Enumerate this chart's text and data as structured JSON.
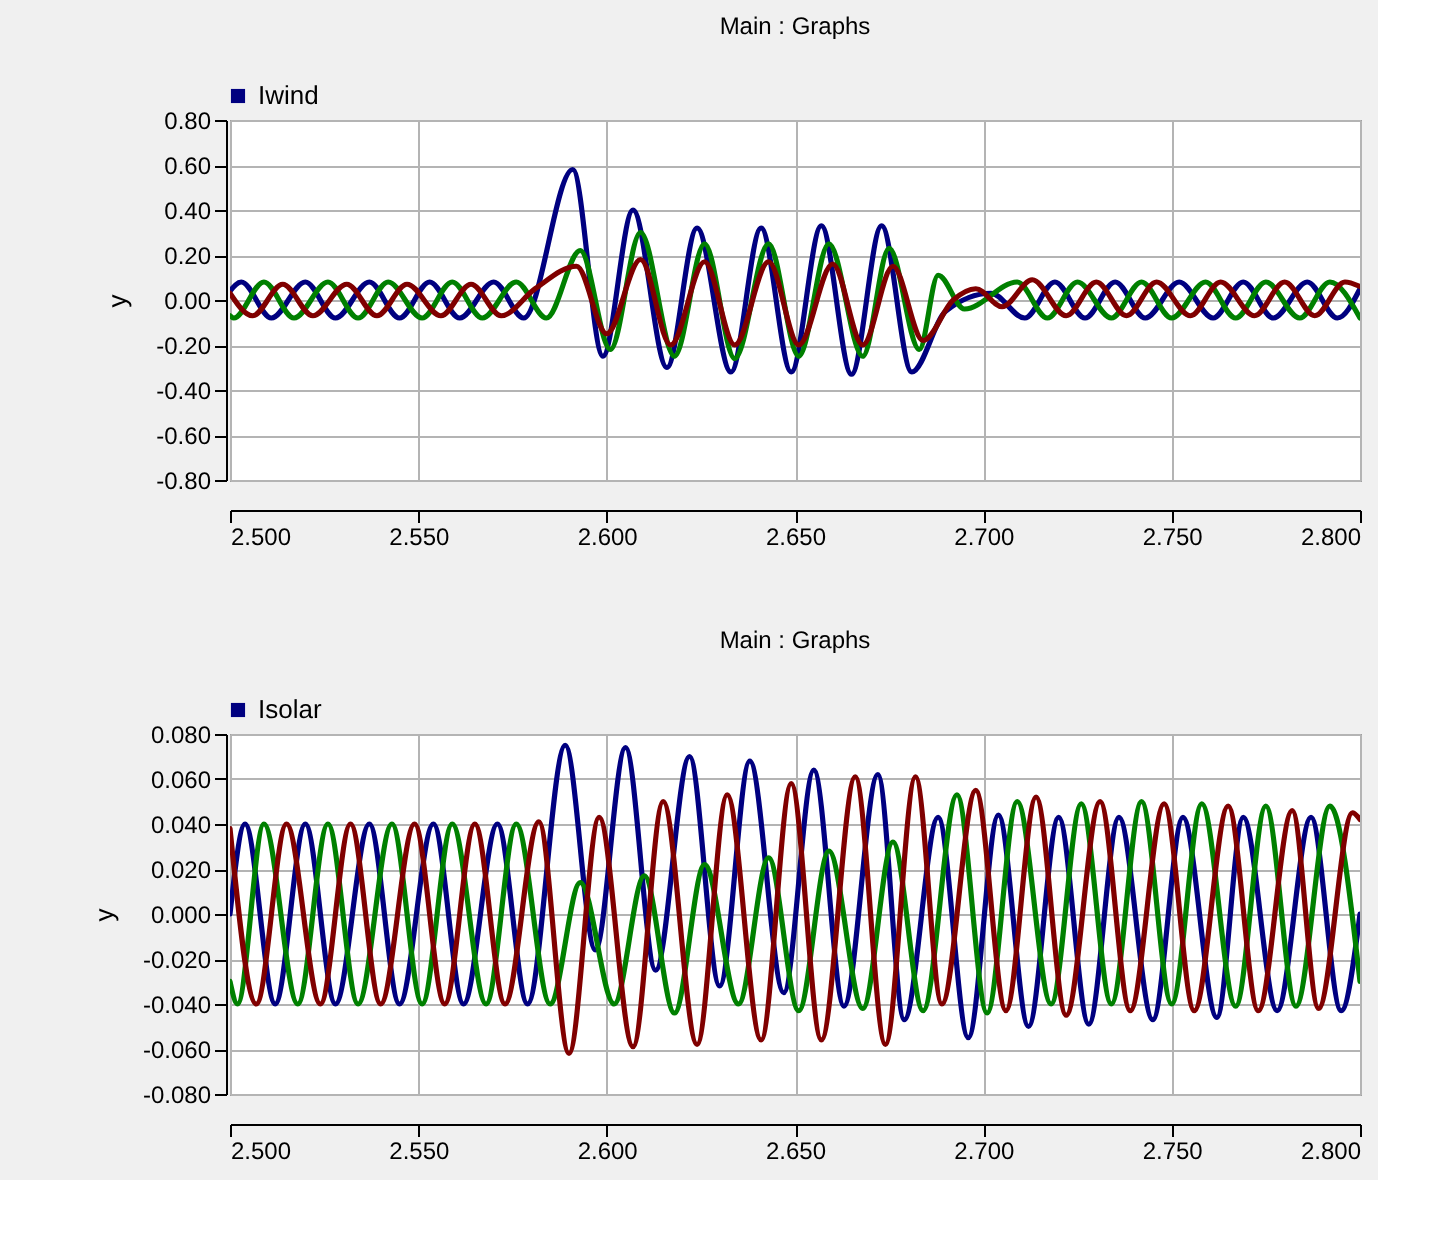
{
  "chart_data": [
    {
      "type": "line",
      "title": "Main : Graphs",
      "ylabel": "y",
      "legend": "top left",
      "grid": true,
      "xlim": [
        2.5,
        2.8
      ],
      "xticks": [
        {
          "value": 2.5,
          "label": "2.500"
        },
        {
          "value": 2.55,
          "label": "2.550"
        },
        {
          "value": 2.6,
          "label": "2.600"
        },
        {
          "value": 2.65,
          "label": "2.650"
        },
        {
          "value": 2.7,
          "label": "2.700"
        },
        {
          "value": 2.75,
          "label": "2.750"
        },
        {
          "value": 2.8,
          "label": "2.800"
        }
      ],
      "ylim": [
        -0.8,
        0.8
      ],
      "yticks": [
        {
          "value": -0.8,
          "label": "-0.80"
        },
        {
          "value": -0.6,
          "label": "-0.60"
        },
        {
          "value": -0.4,
          "label": "-0.40"
        },
        {
          "value": -0.2,
          "label": "-0.20"
        },
        {
          "value": 0,
          "label": "0.00"
        },
        {
          "value": 0.2,
          "label": "0.20"
        },
        {
          "value": 0.4,
          "label": "0.40"
        },
        {
          "value": 0.6,
          "label": "0.60"
        },
        {
          "value": 0.8,
          "label": "0.80"
        }
      ],
      "series": [
        {
          "name": "Iwind",
          "color": "#000080",
          "x": [
            2.5,
            2.503,
            2.511,
            2.52,
            2.528,
            2.537,
            2.545,
            2.553,
            2.561,
            2.57,
            2.578,
            2.591,
            2.599,
            2.607,
            2.616,
            2.624,
            2.633,
            2.641,
            2.649,
            2.657,
            2.665,
            2.673,
            2.681,
            2.69,
            2.702,
            2.711,
            2.719,
            2.727,
            2.735,
            2.743,
            2.752,
            2.761,
            2.769,
            2.777,
            2.786,
            2.794,
            2.8
          ],
          "values": [
            0.04,
            0.08,
            -0.08,
            0.08,
            -0.08,
            0.08,
            -0.08,
            0.08,
            -0.08,
            0.08,
            -0.08,
            0.58,
            -0.25,
            0.4,
            -0.3,
            0.32,
            -0.32,
            0.32,
            -0.32,
            0.33,
            -0.33,
            0.33,
            -0.32,
            -0.05,
            0.03,
            -0.08,
            0.08,
            -0.08,
            0.08,
            -0.08,
            0.08,
            -0.08,
            0.08,
            -0.08,
            0.08,
            -0.08,
            0.05
          ]
        },
        {
          "color": "#008000",
          "x": [
            2.5,
            2.501,
            2.509,
            2.517,
            2.526,
            2.534,
            2.542,
            2.551,
            2.559,
            2.567,
            2.576,
            2.584,
            2.593,
            2.601,
            2.609,
            2.618,
            2.626,
            2.634,
            2.643,
            2.651,
            2.659,
            2.668,
            2.675,
            2.683,
            2.688,
            2.695,
            2.709,
            2.717,
            2.725,
            2.734,
            2.742,
            2.75,
            2.759,
            2.767,
            2.775,
            2.784,
            2.792,
            2.8
          ],
          "values": [
            -0.07,
            -0.08,
            0.08,
            -0.08,
            0.08,
            -0.08,
            0.08,
            -0.08,
            0.08,
            -0.08,
            0.08,
            -0.08,
            0.22,
            -0.22,
            0.3,
            -0.25,
            0.25,
            -0.26,
            0.25,
            -0.25,
            0.25,
            -0.25,
            0.23,
            -0.22,
            0.11,
            -0.04,
            0.08,
            -0.08,
            0.08,
            -0.08,
            0.08,
            -0.08,
            0.08,
            -0.08,
            0.08,
            -0.08,
            0.08,
            -0.08
          ]
        },
        {
          "color": "#800000",
          "x": [
            2.5,
            2.506,
            2.514,
            2.522,
            2.531,
            2.539,
            2.547,
            2.556,
            2.564,
            2.572,
            2.581,
            2.592,
            2.6,
            2.609,
            2.617,
            2.626,
            2.634,
            2.643,
            2.651,
            2.66,
            2.668,
            2.676,
            2.684,
            2.692,
            2.698,
            2.705,
            2.713,
            2.722,
            2.73,
            2.738,
            2.746,
            2.755,
            2.763,
            2.772,
            2.78,
            2.788,
            2.796,
            2.8
          ],
          "values": [
            0.03,
            -0.07,
            0.07,
            -0.07,
            0.07,
            -0.07,
            0.07,
            -0.07,
            0.07,
            -0.07,
            0.05,
            0.15,
            -0.15,
            0.18,
            -0.2,
            0.17,
            -0.2,
            0.17,
            -0.2,
            0.16,
            -0.2,
            0.15,
            -0.18,
            0.0,
            0.05,
            -0.03,
            0.09,
            -0.07,
            0.08,
            -0.07,
            0.08,
            -0.07,
            0.08,
            -0.07,
            0.08,
            -0.07,
            0.08,
            0.06
          ]
        }
      ]
    },
    {
      "type": "line",
      "title": "Main : Graphs",
      "ylabel": "y",
      "legend": "top left",
      "grid": true,
      "xlim": [
        2.5,
        2.8
      ],
      "xticks": [
        {
          "value": 2.5,
          "label": "2.500"
        },
        {
          "value": 2.55,
          "label": "2.550"
        },
        {
          "value": 2.6,
          "label": "2.600"
        },
        {
          "value": 2.65,
          "label": "2.650"
        },
        {
          "value": 2.7,
          "label": "2.700"
        },
        {
          "value": 2.75,
          "label": "2.750"
        },
        {
          "value": 2.8,
          "label": "2.800"
        }
      ],
      "ylim": [
        -0.08,
        0.08
      ],
      "yticks": [
        {
          "value": -0.08,
          "label": "-0.080"
        },
        {
          "value": -0.06,
          "label": "-0.060"
        },
        {
          "value": -0.04,
          "label": "-0.040"
        },
        {
          "value": -0.02,
          "label": "-0.020"
        },
        {
          "value": 0,
          "label": "0.000"
        },
        {
          "value": 0.02,
          "label": "0.020"
        },
        {
          "value": 0.04,
          "label": "0.040"
        },
        {
          "value": 0.06,
          "label": "0.060"
        },
        {
          "value": 0.08,
          "label": "0.080"
        }
      ],
      "series": [
        {
          "name": "Isolar",
          "color": "#000080",
          "x": [
            2.5,
            2.504,
            2.512,
            2.52,
            2.528,
            2.537,
            2.545,
            2.554,
            2.562,
            2.571,
            2.579,
            2.589,
            2.597,
            2.605,
            2.613,
            2.622,
            2.63,
            2.638,
            2.647,
            2.655,
            2.663,
            2.672,
            2.679,
            2.688,
            2.696,
            2.704,
            2.712,
            2.72,
            2.728,
            2.736,
            2.745,
            2.753,
            2.762,
            2.769,
            2.778,
            2.787,
            2.795,
            2.8
          ],
          "values": [
            0.0,
            0.04,
            -0.04,
            0.04,
            -0.04,
            0.04,
            -0.04,
            0.04,
            -0.04,
            0.04,
            -0.04,
            0.075,
            -0.016,
            0.074,
            -0.025,
            0.07,
            -0.032,
            0.068,
            -0.035,
            0.064,
            -0.041,
            0.062,
            -0.047,
            0.043,
            -0.055,
            0.044,
            -0.05,
            0.043,
            -0.049,
            0.043,
            -0.047,
            0.043,
            -0.046,
            0.043,
            -0.043,
            0.043,
            -0.043,
            0.0
          ]
        },
        {
          "color": "#008000",
          "x": [
            2.5,
            2.502,
            2.509,
            2.518,
            2.526,
            2.534,
            2.543,
            2.551,
            2.559,
            2.568,
            2.576,
            2.585,
            2.593,
            2.602,
            2.61,
            2.618,
            2.626,
            2.635,
            2.643,
            2.651,
            2.659,
            2.668,
            2.676,
            2.684,
            2.693,
            2.701,
            2.709,
            2.718,
            2.726,
            2.734,
            2.742,
            2.75,
            2.758,
            2.767,
            2.775,
            2.783,
            2.792,
            2.8
          ],
          "values": [
            -0.03,
            -0.04,
            0.04,
            -0.04,
            0.04,
            -0.04,
            0.04,
            -0.04,
            0.04,
            -0.04,
            0.04,
            -0.04,
            0.014,
            -0.04,
            0.017,
            -0.044,
            0.022,
            -0.04,
            0.025,
            -0.043,
            0.028,
            -0.042,
            0.032,
            -0.043,
            0.053,
            -0.044,
            0.05,
            -0.04,
            0.049,
            -0.04,
            0.05,
            -0.04,
            0.049,
            -0.041,
            0.048,
            -0.041,
            0.048,
            -0.03
          ]
        },
        {
          "color": "#800000",
          "x": [
            2.5,
            2.507,
            2.515,
            2.524,
            2.532,
            2.54,
            2.549,
            2.557,
            2.565,
            2.573,
            2.582,
            2.59,
            2.598,
            2.607,
            2.615,
            2.624,
            2.632,
            2.641,
            2.649,
            2.657,
            2.666,
            2.674,
            2.682,
            2.689,
            2.698,
            2.706,
            2.714,
            2.722,
            2.731,
            2.739,
            2.748,
            2.756,
            2.765,
            2.773,
            2.782,
            2.789,
            2.798,
            2.8
          ],
          "values": [
            0.038,
            -0.04,
            0.04,
            -0.04,
            0.04,
            -0.04,
            0.04,
            -0.04,
            0.04,
            -0.04,
            0.041,
            -0.062,
            0.043,
            -0.059,
            0.05,
            -0.058,
            0.053,
            -0.056,
            0.058,
            -0.056,
            0.061,
            -0.058,
            0.061,
            -0.04,
            0.055,
            -0.043,
            0.052,
            -0.045,
            0.05,
            -0.043,
            0.049,
            -0.043,
            0.048,
            -0.043,
            0.046,
            -0.042,
            0.045,
            0.042
          ]
        }
      ]
    }
  ]
}
